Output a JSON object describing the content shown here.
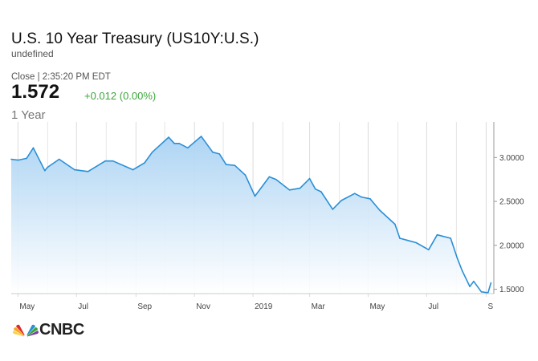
{
  "header": {
    "title": "U.S. 10 Year Treasury (US10Y:U.S.)",
    "subtitle": "undefined",
    "close_line": "Close | 2:35:20 PM EDT",
    "price": "1.572",
    "change": "+0.012 (0.00%)",
    "range": "1 Year",
    "change_color": "#3aa53a"
  },
  "logo": {
    "text": "CNBC",
    "icon": "cnbc-peacock-icon"
  },
  "colors": {
    "line": "#2a8fd6",
    "fill_top": "#a9d2f3",
    "fill_bottom": "#ffffff"
  },
  "chart_data": {
    "type": "area",
    "x": [
      "2018-04-24",
      "2018-05-01",
      "2018-05-10",
      "2018-05-17",
      "2018-05-29",
      "2018-06-01",
      "2018-06-13",
      "2018-06-29",
      "2018-07-13",
      "2018-07-31",
      "2018-08-08",
      "2018-08-29",
      "2018-09-10",
      "2018-09-18",
      "2018-10-05",
      "2018-10-11",
      "2018-10-16",
      "2018-10-25",
      "2018-11-08",
      "2018-11-20",
      "2018-11-27",
      "2018-12-04",
      "2018-12-13",
      "2018-12-24",
      "2019-01-03",
      "2019-01-18",
      "2019-01-25",
      "2019-02-08",
      "2019-02-19",
      "2019-03-01",
      "2019-03-07",
      "2019-03-13",
      "2019-03-25",
      "2019-04-03",
      "2019-04-17",
      "2019-04-24",
      "2019-05-03",
      "2019-05-13",
      "2019-05-29",
      "2019-06-03",
      "2019-06-20",
      "2019-07-03",
      "2019-07-12",
      "2019-07-26",
      "2019-08-02",
      "2019-08-07",
      "2019-08-15",
      "2019-08-19",
      "2019-08-27",
      "2019-09-03",
      "2019-09-06"
    ],
    "series": [
      {
        "values": [
          2.98,
          2.97,
          2.99,
          3.11,
          2.85,
          2.89,
          2.98,
          2.86,
          2.84,
          2.96,
          2.96,
          2.86,
          2.94,
          3.06,
          3.23,
          3.16,
          3.16,
          3.11,
          3.24,
          3.06,
          3.04,
          2.92,
          2.91,
          2.8,
          2.56,
          2.78,
          2.75,
          2.63,
          2.65,
          2.76,
          2.64,
          2.61,
          2.41,
          2.51,
          2.59,
          2.55,
          2.53,
          2.4,
          2.24,
          2.08,
          2.03,
          1.95,
          2.12,
          2.08,
          1.85,
          1.71,
          1.53,
          1.59,
          1.47,
          1.46,
          1.572
        ]
      }
    ],
    "x_ticks": [
      "May",
      "Jul",
      "Sep",
      "Nov",
      "2019",
      "Mar",
      "May",
      "Jul",
      "S"
    ],
    "y_ticks": [
      "1.5000",
      "2.0000",
      "2.5000",
      "3.0000"
    ],
    "ylim": [
      1.45,
      3.35
    ],
    "grid": "vertical"
  }
}
